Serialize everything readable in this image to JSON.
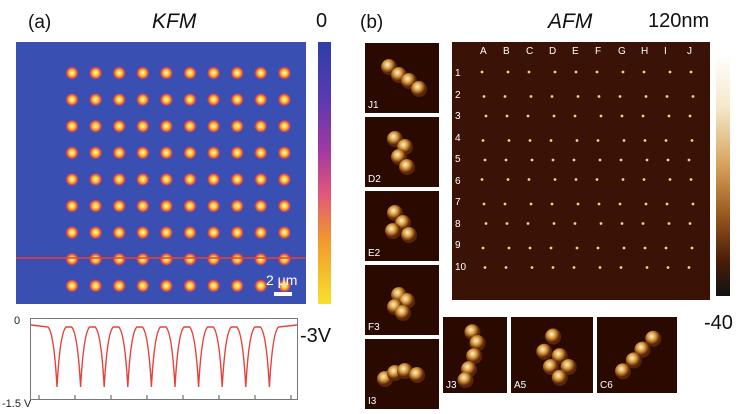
{
  "panel_a": {
    "label": "(a)",
    "title": "KFM",
    "colorbar_top": "0",
    "colorbar_bottom": "-3V",
    "scale_bar_text": "2 μm",
    "grid": {
      "rows": 9,
      "cols": 10
    },
    "profile": {
      "y_top": "0",
      "y_bottom": "-1.5 V",
      "dips": 10
    }
  },
  "panel_b": {
    "label": "(b)",
    "title": "AFM",
    "colorbar_top": "120nm",
    "colorbar_bottom": "-40",
    "columns": [
      "A",
      "B",
      "C",
      "D",
      "E",
      "F",
      "G",
      "H",
      "I",
      "J"
    ],
    "rows": [
      "1",
      "2",
      "3",
      "4",
      "5",
      "6",
      "7",
      "8",
      "9",
      "10"
    ],
    "thumbs_left": [
      "J1",
      "D2",
      "E2",
      "F3",
      "I3"
    ],
    "thumbs_bottom": [
      "J3",
      "A5",
      "C6"
    ]
  },
  "colors": {
    "kfm_bg": "#3a4fb2",
    "afm_bg": "#3b1206",
    "profile_line": "#e8413a"
  }
}
